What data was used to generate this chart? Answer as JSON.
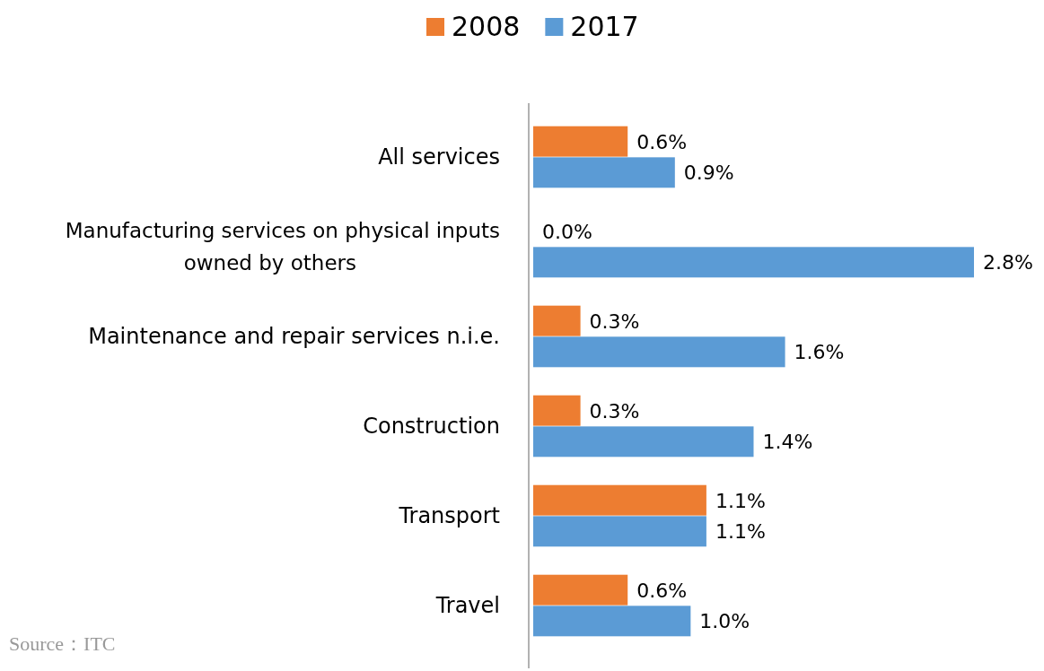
{
  "chart_data": {
    "type": "bar",
    "orientation": "horizontal",
    "categories": [
      "All services",
      "Manufacturing services on physical inputs owned by others",
      "Maintenance and repair services n.i.e.",
      "Construction",
      "Transport",
      "Travel"
    ],
    "series": [
      {
        "name": "2008",
        "color": "#ed7d31",
        "values": [
          0.6,
          0.0,
          0.3,
          0.3,
          1.1,
          0.6
        ],
        "value_labels": [
          "0.6%",
          "0.0%",
          "0.3%",
          "0.3%",
          "1.1%",
          "0.6%"
        ]
      },
      {
        "name": "2017",
        "color": "#5b9bd5",
        "values": [
          0.9,
          2.8,
          1.6,
          1.4,
          1.1,
          1.0
        ],
        "value_labels": [
          "0.9%",
          "2.8%",
          "1.6%",
          "1.4%",
          "1.1%",
          "1.0%"
        ]
      }
    ],
    "tick_labels": "y",
    "legend": "top",
    "annotations": [
      "Source：ITC"
    ]
  }
}
